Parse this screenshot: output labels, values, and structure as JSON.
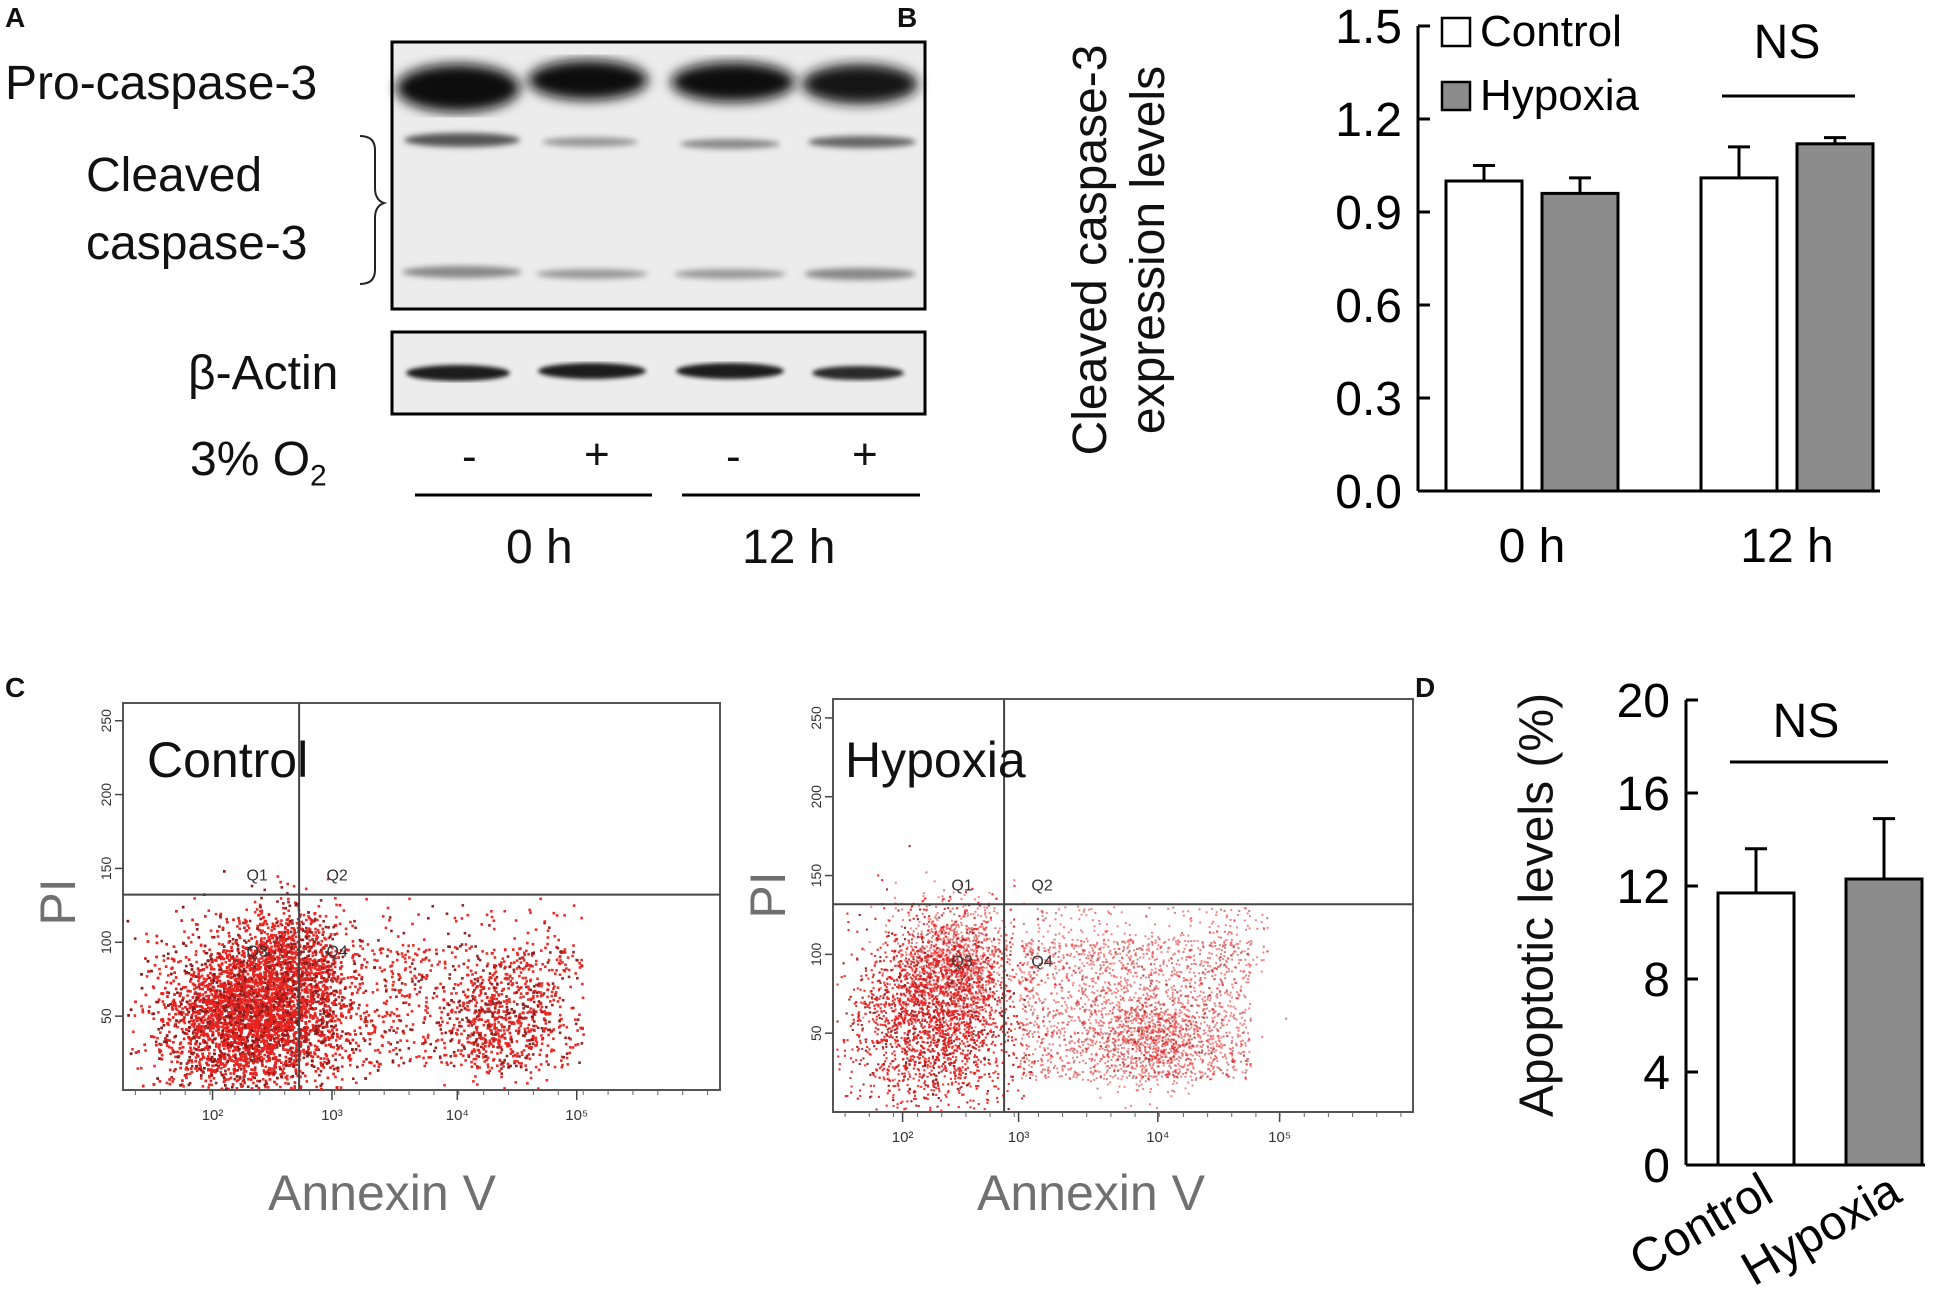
{
  "panels": {
    "a": "A",
    "b": "B",
    "c": "C",
    "d": "D"
  },
  "blot": {
    "pro_label": "Pro-caspase-3",
    "cleaved_label_1": "Cleaved",
    "cleaved_label_2": "caspase-3",
    "actin_label": "β-Actin",
    "o2_label": "3% O",
    "o2_sub": "2",
    "lanes": [
      "-",
      "+",
      "-",
      "+"
    ],
    "groups": [
      "0 h",
      "12 h"
    ]
  },
  "chart_data": [
    {
      "id": "B",
      "type": "bar",
      "categories": [
        "0 h",
        "12 h"
      ],
      "series": [
        {
          "name": "Control",
          "color": "#ffffff",
          "values": [
            1.0,
            1.01
          ],
          "errors": [
            0.05,
            0.1
          ]
        },
        {
          "name": "Hypoxia",
          "color": "#8c8c8c",
          "values": [
            0.96,
            1.12
          ],
          "errors": [
            0.05,
            0.02
          ]
        }
      ],
      "ylabel_1": "Cleaved caspase-3",
      "ylabel_2": "expression levels",
      "ylim": [
        0,
        1.5
      ],
      "yticks": [
        "0.0",
        "0.3",
        "0.6",
        "0.9",
        "1.2",
        "1.5"
      ],
      "annotation": "NS",
      "legend_position": "top-left"
    },
    {
      "id": "C-control",
      "type": "scatter",
      "title": "Control",
      "xlabel": "Annexin V",
      "ylabel": "PI",
      "xticks": [
        "10²",
        "10³",
        "10⁴",
        "10⁵"
      ],
      "yticks": [
        "50",
        "100",
        "150",
        "200",
        "250"
      ],
      "quadrants": [
        "Q1",
        "Q2",
        "Q3",
        "Q4"
      ]
    },
    {
      "id": "C-hypoxia",
      "type": "scatter",
      "title": "Hypoxia",
      "xlabel": "Annexin V",
      "ylabel": "PI",
      "xticks": [
        "10²",
        "10³",
        "10⁴",
        "10⁵"
      ],
      "yticks": [
        "50",
        "100",
        "150",
        "200",
        "250"
      ],
      "quadrants": [
        "Q1",
        "Q2",
        "Q3",
        "Q4"
      ]
    },
    {
      "id": "D",
      "type": "bar",
      "categories": [
        "Control",
        "Hypoxia"
      ],
      "values": [
        11.7,
        12.3
      ],
      "errors": [
        1.9,
        2.6
      ],
      "colors": [
        "#ffffff",
        "#8c8c8c"
      ],
      "ylabel": "Apoptotic levels (%)",
      "ylim": [
        0,
        20
      ],
      "yticks": [
        "0",
        "4",
        "8",
        "12",
        "16",
        "20"
      ],
      "annotation": "NS"
    }
  ]
}
